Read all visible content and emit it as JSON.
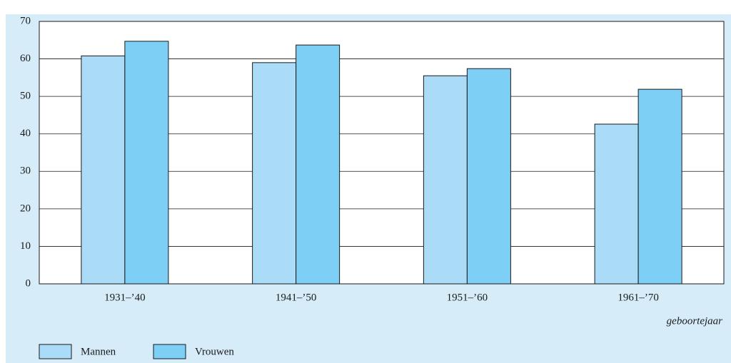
{
  "chart_data": {
    "type": "bar",
    "categories": [
      "1931–’40",
      "1941–’50",
      "1951–’60",
      "1961–’70"
    ],
    "series": [
      {
        "name": "Mannen",
        "color": "#aadcf8",
        "values": [
          60.8,
          59.0,
          55.5,
          42.6
        ]
      },
      {
        "name": "Vrouwen",
        "color": "#7dcff5",
        "values": [
          64.7,
          63.7,
          57.4,
          51.9
        ]
      }
    ],
    "xlabel": "geboortejaar",
    "ylim": [
      0,
      70
    ],
    "yticks": [
      0,
      10,
      20,
      30,
      40,
      50,
      60,
      70
    ],
    "grid": true,
    "legend": "bottom"
  }
}
